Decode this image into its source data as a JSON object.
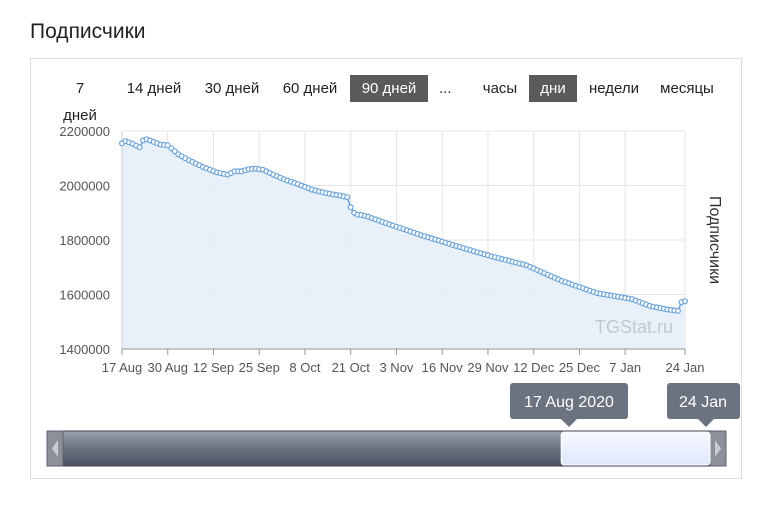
{
  "title": "Подписчики",
  "range_buttons": [
    {
      "label": "7 дней",
      "active": false
    },
    {
      "label": "14 дней",
      "active": false
    },
    {
      "label": "30 дней",
      "active": false
    },
    {
      "label": "60 дней",
      "active": false
    },
    {
      "label": "90 дней",
      "active": true
    },
    {
      "label": "...",
      "active": false
    }
  ],
  "granularity_buttons": [
    {
      "label": "часы",
      "active": false
    },
    {
      "label": "дни",
      "active": true
    },
    {
      "label": "недели",
      "active": false
    },
    {
      "label": "месяцы",
      "active": false
    }
  ],
  "navigator": {
    "start_label": "17 Aug 2020",
    "end_label": "24 Jan",
    "selection_start_fraction": 0.77,
    "selection_end_fraction": 1.0
  },
  "colors": {
    "line": "#6aa3d8",
    "fill": "#e6eefa",
    "active_button": "#5a5a5a"
  },
  "chart_data": {
    "type": "area",
    "watermark": "TGStat.ru",
    "ylabel": "Подписчики",
    "ylim": [
      1400000,
      2200000
    ],
    "yticks": [
      1400000,
      1600000,
      1800000,
      2000000,
      2200000
    ],
    "ytick_labels": [
      "1400000",
      "1600000",
      "1800000",
      "2000000",
      "2200000"
    ],
    "xtick_labels": [
      "17 Aug",
      "30 Aug",
      "12 Sep",
      "25 Sep",
      "8 Oct",
      "21 Oct",
      "3 Nov",
      "16 Nov",
      "29 Nov",
      "12 Dec",
      "25 Dec",
      "7 Jan",
      "24 Jan"
    ],
    "xtick_day_offsets": [
      0,
      13,
      26,
      39,
      52,
      65,
      78,
      91,
      104,
      117,
      130,
      143,
      160
    ],
    "grid": true,
    "series": [
      {
        "anchor_day_offsets": [
          0,
          1,
          3,
          5,
          6,
          7,
          9,
          11,
          13,
          16,
          19,
          23,
          27,
          30,
          32,
          34,
          36,
          38,
          40,
          43,
          46,
          50,
          54,
          58,
          62,
          64,
          65,
          66,
          67,
          68,
          70,
          75,
          85,
          95,
          105,
          115,
          125,
          135,
          145,
          150,
          155,
          158,
          159,
          160
        ],
        "anchor_values": [
          2155000,
          2163000,
          2153000,
          2140000,
          2165000,
          2170000,
          2160000,
          2150000,
          2148000,
          2115000,
          2093000,
          2068000,
          2048000,
          2040000,
          2052000,
          2052000,
          2060000,
          2062000,
          2058000,
          2040000,
          2023000,
          2005000,
          1985000,
          1972000,
          1963000,
          1957000,
          1920000,
          1900000,
          1893000,
          1892000,
          1885000,
          1862000,
          1818000,
          1778000,
          1740000,
          1707000,
          1650000,
          1605000,
          1583000,
          1558000,
          1545000,
          1540000,
          1572000,
          1575000
        ]
      }
    ]
  }
}
